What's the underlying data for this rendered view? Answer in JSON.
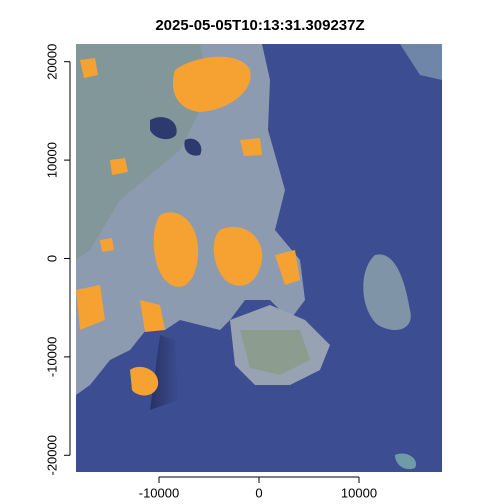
{
  "chart_data": {
    "type": "raster",
    "title": "2025-05-05T10:13:31.309237Z",
    "xlim": [
      -18300,
      18300
    ],
    "xticks": [
      -10000,
      0,
      10000
    ],
    "ylim": [
      -21700,
      21800
    ],
    "yticks": [
      -20000,
      -10000,
      0,
      10000,
      20000
    ]
  }
}
